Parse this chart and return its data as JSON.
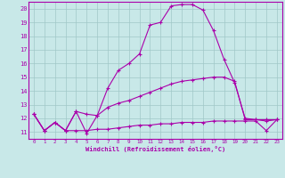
{
  "x": [
    0,
    1,
    2,
    3,
    4,
    5,
    6,
    7,
    8,
    9,
    10,
    11,
    12,
    13,
    14,
    15,
    16,
    17,
    18,
    19,
    20,
    21,
    22,
    23
  ],
  "line1": [
    12.3,
    11.1,
    11.7,
    11.1,
    12.5,
    10.9,
    12.2,
    14.2,
    15.5,
    16.0,
    16.7,
    18.8,
    19.0,
    20.2,
    20.3,
    20.3,
    19.9,
    18.4,
    16.3,
    14.6,
    12.0,
    11.9,
    11.8,
    11.9
  ],
  "line2": [
    12.3,
    11.1,
    11.7,
    11.1,
    12.5,
    12.3,
    12.2,
    12.8,
    13.1,
    13.3,
    13.6,
    13.9,
    14.2,
    14.5,
    14.7,
    14.8,
    14.9,
    15.0,
    15.0,
    14.7,
    11.9,
    11.9,
    11.9,
    11.9
  ],
  "line3": [
    12.3,
    11.1,
    11.7,
    11.1,
    11.1,
    11.1,
    11.2,
    11.2,
    11.3,
    11.4,
    11.5,
    11.5,
    11.6,
    11.6,
    11.7,
    11.7,
    11.7,
    11.8,
    11.8,
    11.8,
    11.8,
    11.8,
    11.1,
    11.9
  ],
  "bg_color": "#c8e8e8",
  "grid_color": "#a0c8c8",
  "line_color": "#aa00aa",
  "xlabel": "Windchill (Refroidissement éolien,°C)",
  "xlim": [
    -0.5,
    23.5
  ],
  "ylim": [
    10.5,
    20.5
  ],
  "yticks": [
    11,
    12,
    13,
    14,
    15,
    16,
    17,
    18,
    19,
    20
  ],
  "xticks": [
    0,
    1,
    2,
    3,
    4,
    5,
    6,
    7,
    8,
    9,
    10,
    11,
    12,
    13,
    14,
    15,
    16,
    17,
    18,
    19,
    20,
    21,
    22,
    23
  ]
}
